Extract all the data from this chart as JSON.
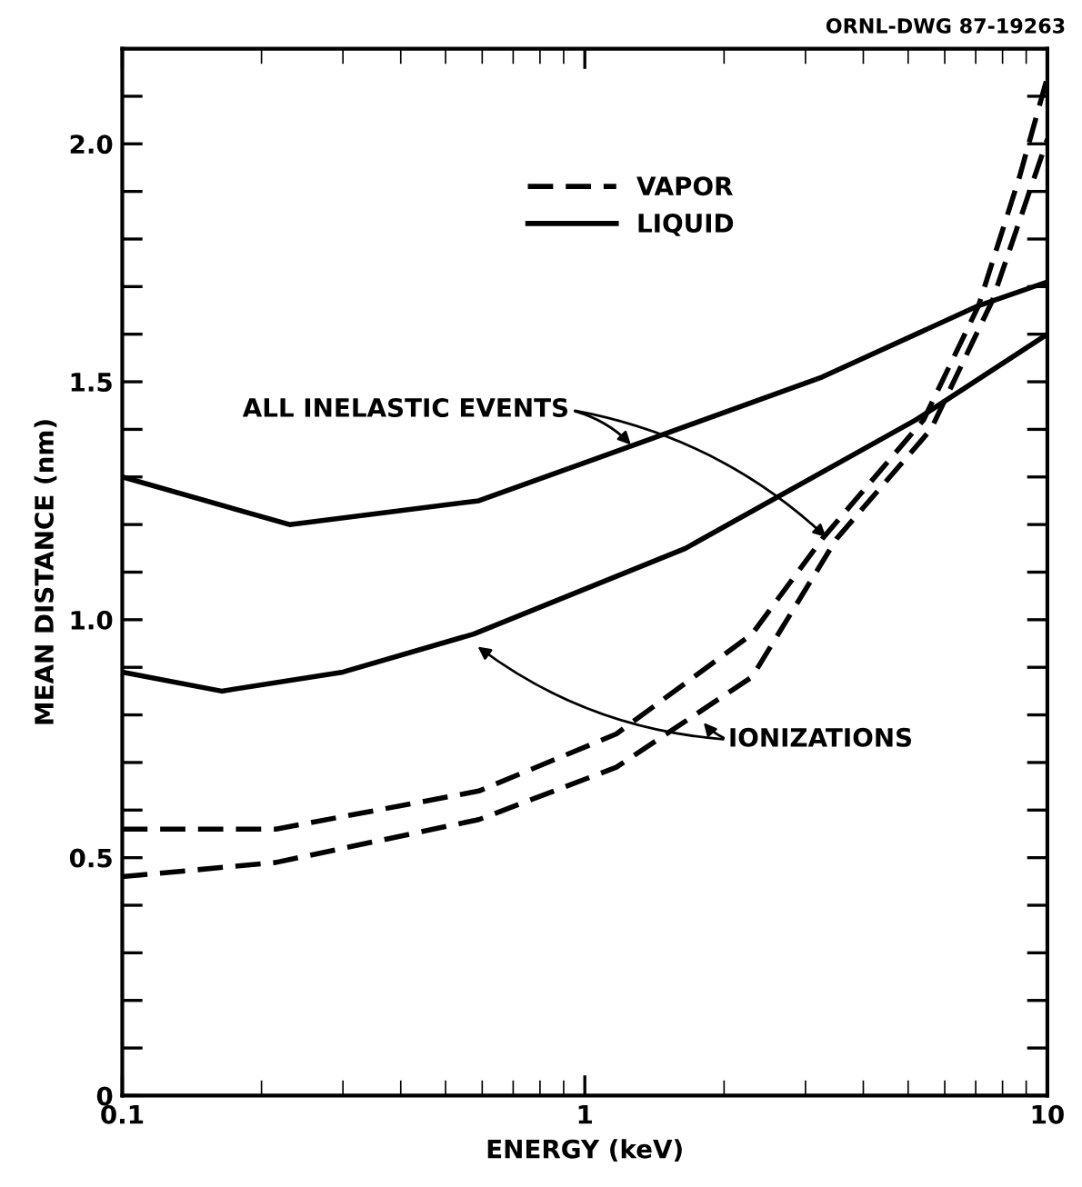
{
  "chart_data": {
    "type": "line",
    "xlabel": "ENERGY (keV)",
    "ylabel": "MEAN DISTANCE (nm)",
    "log": "x",
    "xlim": [
      0.1,
      10
    ],
    "xticks": [
      0.1,
      1,
      10
    ],
    "ylim": [
      0,
      2.2
    ],
    "yticks": [
      0,
      {
        "value": 0.1,
        "label": null
      },
      {
        "value": 0.2,
        "label": null
      },
      {
        "value": 0.3,
        "label": null
      },
      {
        "value": 0.4,
        "label": null
      },
      0.5,
      {
        "value": 0.6,
        "label": null
      },
      {
        "value": 0.7,
        "label": null
      },
      {
        "value": 0.8,
        "label": null
      },
      {
        "value": 0.9,
        "label": null
      },
      {
        "value": 1.0,
        "label": "1.0"
      },
      {
        "value": 1.1,
        "label": null
      },
      {
        "value": 1.2,
        "label": null
      },
      {
        "value": 1.3,
        "label": null
      },
      {
        "value": 1.4,
        "label": null
      },
      1.5,
      {
        "value": 1.6,
        "label": null
      },
      {
        "value": 1.7,
        "label": null
      },
      {
        "value": 1.8,
        "label": null
      },
      {
        "value": 1.9,
        "label": null
      },
      {
        "value": 2.0,
        "label": "2.0"
      },
      {
        "value": 2.1,
        "label": null
      }
    ],
    "grid": false,
    "legend": "top",
    "marker": "none",
    "series": [
      {
        "name": "LIQUID",
        "color": "#000000",
        "line_style": "solid",
        "x": [
          0.1,
          0.23,
          0.59,
          1.39,
          3.26,
          7.1,
          10
        ],
        "values": [
          1.3,
          1.2,
          1.25,
          1.38,
          1.51,
          1.66,
          1.71
        ]
      },
      {
        "color": "#000000",
        "line_style": "solid",
        "x": [
          0.1,
          0.164,
          0.3,
          0.575,
          1.65,
          5.2,
          10
        ],
        "values": [
          0.89,
          0.85,
          0.89,
          0.97,
          1.15,
          1.42,
          1.6
        ]
      },
      {
        "name": "VAPOR",
        "color": "#000000",
        "line_style": "dashed",
        "x": [
          0.1,
          0.215,
          0.59,
          1.17,
          2.3,
          3.26,
          5.4,
          7.1,
          8.7,
          10
        ],
        "values": [
          0.56,
          0.56,
          0.64,
          0.76,
          0.97,
          1.17,
          1.42,
          1.66,
          1.93,
          2.14
        ]
      },
      {
        "color": "#000000",
        "line_style": "dashed",
        "x": [
          0.1,
          0.215,
          0.59,
          1.17,
          2.3,
          3.5,
          5.6,
          7.6,
          10
        ],
        "values": [
          0.46,
          0.49,
          0.58,
          0.69,
          0.88,
          1.17,
          1.4,
          1.67,
          2.01
        ]
      }
    ],
    "annotations": [
      {
        "text": "ALL INELASTIC EVENTS",
        "x": 1.28,
        "y": 1.36
      },
      {
        "text": "IONIZATIONS",
        "x": 0.575,
        "y": 0.95
      },
      "ORNL-DWG 87-19263"
    ]
  }
}
